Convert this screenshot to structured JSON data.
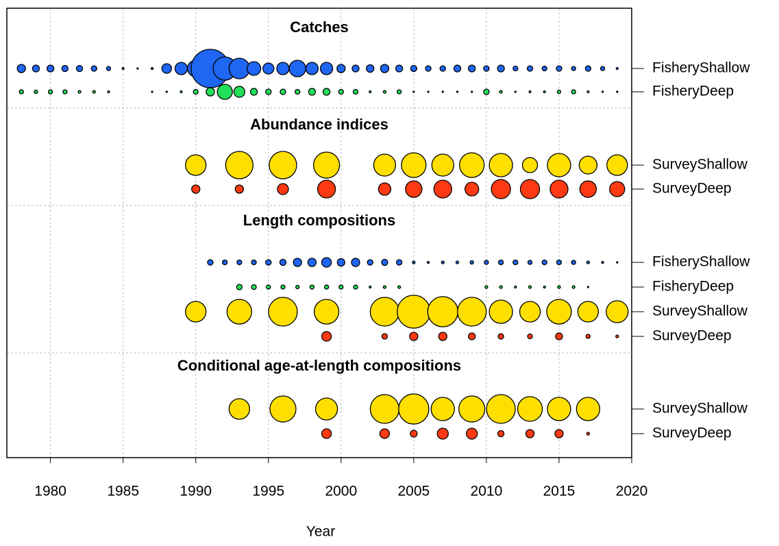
{
  "chart_data": {
    "type": "bubble",
    "xlabel": "Year",
    "xlim": [
      1977,
      2020
    ],
    "xticks": [
      1980,
      1985,
      1990,
      1995,
      2000,
      2005,
      2010,
      2015,
      2020
    ],
    "grid": true,
    "panels": [
      {
        "title": "Catches",
        "series": [
          {
            "name": "FisheryShallow",
            "color": "#1f66f2",
            "x": [
              1978,
              1979,
              1980,
              1981,
              1982,
              1983,
              1984,
              1985,
              1986,
              1987,
              1988,
              1989,
              1990,
              1991,
              1992,
              1993,
              1994,
              1995,
              1996,
              1997,
              1998,
              1999,
              2000,
              2001,
              2002,
              2003,
              2004,
              2005,
              2006,
              2007,
              2008,
              2009,
              2010,
              2011,
              2012,
              2013,
              2014,
              2015,
              2016,
              2017,
              2018,
              2019
            ],
            "values": [
              6,
              5,
              5,
              4.5,
              4.5,
              4,
              3,
              1.5,
              1,
              1.5,
              7,
              9,
              12,
              28,
              17,
              15,
              10,
              8,
              9,
              12,
              9,
              9,
              6,
              5,
              5.5,
              6,
              5,
              4.5,
              4,
              4,
              5,
              5,
              4,
              5,
              3.5,
              4,
              3.5,
              4,
              3,
              4,
              3,
              1.5
            ]
          },
          {
            "name": "FisheryDeep",
            "color": "#22e05a",
            "x": [
              1978,
              1979,
              1980,
              1981,
              1982,
              1983,
              1984,
              1987,
              1988,
              1989,
              1990,
              1991,
              1992,
              1993,
              1994,
              1995,
              1996,
              1997,
              1998,
              1999,
              2000,
              2001,
              2002,
              2003,
              2004,
              2005,
              2006,
              2007,
              2008,
              2009,
              2010,
              2011,
              2012,
              2013,
              2014,
              2015,
              2016,
              2017,
              2018,
              2019
            ],
            "values": [
              3,
              2.5,
              3,
              3,
              2,
              2,
              1.5,
              1,
              1,
              1.5,
              3.5,
              6,
              11,
              8,
              5,
              4,
              4,
              3.5,
              5,
              5,
              3.5,
              3.5,
              1.5,
              2,
              3,
              1,
              1,
              1,
              1,
              1,
              4,
              2,
              1,
              1.5,
              1.5,
              2.5,
              3,
              1.5,
              1,
              1
            ]
          }
        ]
      },
      {
        "title": "Abundance indices",
        "series": [
          {
            "name": "SurveyShallow",
            "color": "#ffdf00",
            "x": [
              1990,
              1993,
              1996,
              1999,
              2003,
              2005,
              2007,
              2009,
              2011,
              2013,
              2015,
              2017,
              2019
            ],
            "values": [
              15,
              20,
              20,
              19,
              16,
              18,
              16,
              18,
              17,
              11,
              17,
              13,
              15
            ]
          },
          {
            "name": "SurveyDeep",
            "color": "#ff3a12",
            "x": [
              1990,
              1993,
              1996,
              1999,
              2003,
              2005,
              2007,
              2009,
              2011,
              2013,
              2015,
              2017,
              2019
            ],
            "values": [
              6,
              6,
              8,
              13,
              9,
              12,
              13,
              10,
              14,
              14,
              13,
              12,
              11
            ]
          }
        ]
      },
      {
        "title": "Length compositions",
        "series": [
          {
            "name": "FisheryShallow",
            "color": "#1f66f2",
            "x": [
              1991,
              1992,
              1993,
              1994,
              1995,
              1996,
              1997,
              1998,
              1999,
              2000,
              2001,
              2002,
              2003,
              2004,
              2005,
              2006,
              2007,
              2008,
              2009,
              2010,
              2011,
              2012,
              2013,
              2014,
              2015,
              2016,
              2017,
              2018,
              2019
            ],
            "values": [
              4,
              3.5,
              3.5,
              3.5,
              4,
              4.5,
              6,
              6,
              7,
              5.5,
              6,
              4,
              4.5,
              4,
              2,
              1.5,
              2,
              2,
              2.5,
              3,
              3.5,
              3.5,
              3,
              3.5,
              3.5,
              3,
              2,
              1.5,
              1
            ]
          },
          {
            "name": "FisheryDeep",
            "color": "#22e05a",
            "x": [
              1993,
              1994,
              1995,
              1996,
              1997,
              1998,
              1999,
              2000,
              2001,
              2002,
              2003,
              2004,
              2010,
              2011,
              2012,
              2013,
              2014,
              2015,
              2016,
              2017
            ],
            "values": [
              4,
              3.5,
              3,
              3,
              2.5,
              3,
              3,
              3,
              3,
              1.5,
              2,
              2,
              2,
              2,
              1.5,
              2,
              1.5,
              2,
              2,
              1
            ]
          },
          {
            "name": "SurveyShallow",
            "color": "#ffdf00",
            "x": [
              1990,
              1993,
              1996,
              1999,
              2003,
              2005,
              2007,
              2009,
              2011,
              2013,
              2015,
              2017,
              2019
            ],
            "values": [
              15,
              18,
              21,
              18,
              21,
              24,
              22,
              21,
              17,
              15,
              18,
              15,
              16
            ]
          },
          {
            "name": "SurveyDeep",
            "color": "#ff3a12",
            "x": [
              1999,
              2003,
              2005,
              2007,
              2009,
              2011,
              2013,
              2015,
              2017,
              2019
            ],
            "values": [
              7,
              4,
              6,
              6,
              5,
              4,
              3.5,
              5,
              3,
              2
            ]
          }
        ]
      },
      {
        "title": "Conditional age-at-length compositions",
        "series": [
          {
            "name": "SurveyShallow",
            "color": "#ffdf00",
            "x": [
              1993,
              1996,
              1999,
              2003,
              2005,
              2007,
              2009,
              2011,
              2013,
              2015,
              2017
            ],
            "values": [
              15,
              19,
              16,
              21,
              22,
              17,
              19,
              21,
              18,
              17,
              17
            ]
          },
          {
            "name": "SurveyDeep",
            "color": "#ff3a12",
            "x": [
              1999,
              2003,
              2005,
              2007,
              2009,
              2011,
              2013,
              2015,
              2017
            ],
            "values": [
              7,
              7,
              5,
              8,
              8,
              4.5,
              6,
              6,
              2
            ]
          }
        ]
      }
    ]
  }
}
